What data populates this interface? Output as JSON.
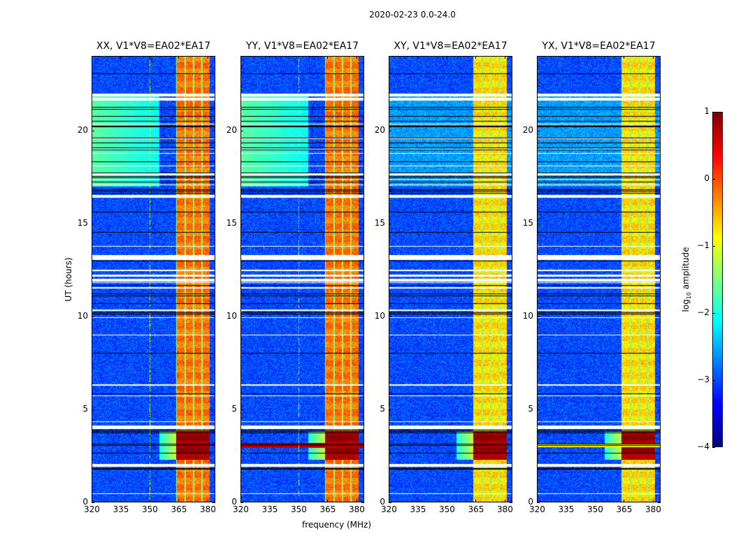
{
  "chart_data": {
    "type": "heatmap",
    "suptitle": "2020-02-23 0.0-24.0",
    "xlabel": "frequency (MHz)",
    "ylabel": "UT (hours)",
    "xlim": [
      320,
      384
    ],
    "ylim": [
      0,
      24
    ],
    "xticks": [
      320,
      335,
      350,
      365,
      380
    ],
    "yticks": [
      0,
      5,
      10,
      15,
      20
    ],
    "colorbar": {
      "label_prefix": "log",
      "label_sub": "10",
      "label_suffix": " amplitude",
      "clim": [
        -4,
        1
      ],
      "ticks": [
        -4,
        -3,
        -2,
        -1,
        0,
        1
      ],
      "tick_labels": [
        "−4",
        "−3",
        "−2",
        "−1",
        "0",
        "1"
      ],
      "colormap": "jet"
    },
    "panels": [
      {
        "title": "XX, V1*V8=EA02*EA17",
        "pol": "XX"
      },
      {
        "title": "YY, V1*V8=EA02*EA17",
        "pol": "YY"
      },
      {
        "title": "XY, V1*V8=EA02*EA17",
        "pol": "XY"
      },
      {
        "title": "YX, V1*V8=EA02*EA17",
        "pol": "YX"
      }
    ],
    "features": {
      "bright_band_mhz": [
        363.5,
        381
      ],
      "background_level": -3,
      "band_level_parallel": -0.3,
      "band_level_cross": -0.8,
      "strong_event_ut": [
        2.3,
        3.8
      ],
      "flagged_ut": [
        [
          1.95,
          2.1
        ],
        [
          3.95,
          4.15
        ],
        [
          11.9,
          12.05
        ],
        [
          12.15,
          12.25
        ],
        [
          13.05,
          13.3
        ],
        [
          16.4,
          16.55
        ],
        [
          17.6,
          17.7
        ],
        [
          21.6,
          21.75
        ],
        [
          21.85,
          22.0
        ]
      ]
    }
  }
}
